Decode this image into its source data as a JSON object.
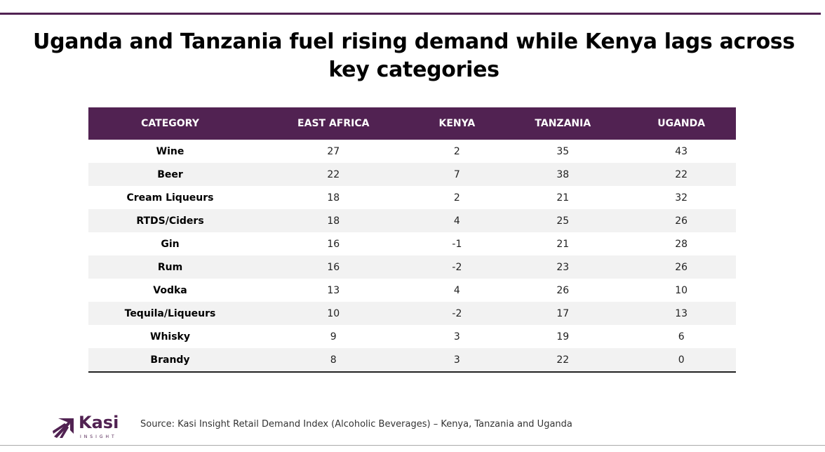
{
  "title": "Uganda and Tanzania fuel rising demand while Kenya lags across key categories",
  "table": {
    "headers": [
      "CATEGORY",
      "EAST AFRICA",
      "KENYA",
      "TANZANIA",
      "UGANDA"
    ],
    "rows": [
      [
        "Wine",
        "27",
        "2",
        "35",
        "43"
      ],
      [
        "Beer",
        "22",
        "7",
        "38",
        "22"
      ],
      [
        "Cream Liqueurs",
        "18",
        "2",
        "21",
        "32"
      ],
      [
        "RTDS/Ciders",
        "18",
        "4",
        "25",
        "26"
      ],
      [
        "Gin",
        "16",
        "-1",
        "21",
        "28"
      ],
      [
        "Rum",
        "16",
        "-2",
        "23",
        "26"
      ],
      [
        "Vodka",
        "13",
        "4",
        "26",
        "10"
      ],
      [
        "Tequila/Liqueurs",
        "10",
        "-2",
        "17",
        "13"
      ],
      [
        "Whisky",
        "9",
        "3",
        "19",
        "6"
      ],
      [
        "Brandy",
        "8",
        "3",
        "22",
        "0"
      ]
    ]
  },
  "footer": {
    "source": "Source: Kasi Insight Retail  Demand Index (Alcoholic Beverages)  – Kenya, Tanzania and Uganda"
  },
  "logo": {
    "name": "Kasi",
    "sub": "INSIGHT"
  },
  "colors": {
    "brand": "#512252"
  }
}
